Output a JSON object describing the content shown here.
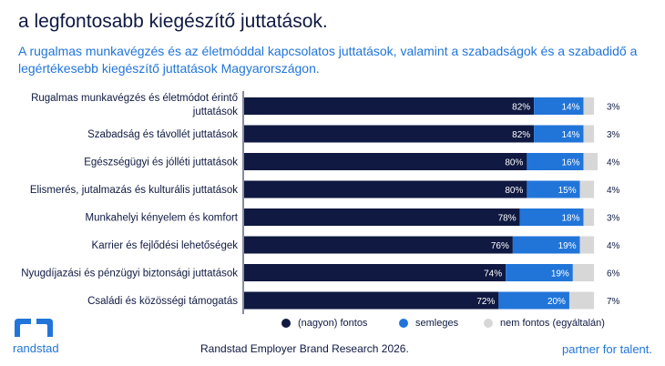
{
  "header": {
    "title": "a legfontosabb kiegészítő juttatások.",
    "subtitle": "A rugalmas munkavégzés és az életmóddal kapcsolatos juttatások, valamint a szabadságok és a szabadidő a legértékesebb kiegészítő juttatások Magyarországon."
  },
  "chart_data": {
    "type": "bar",
    "orientation": "horizontal",
    "stacked": true,
    "categories": [
      [
        "Rugalmas munkavégzés és életmódot érintő",
        "juttatások"
      ],
      [
        "Szabadság és távollét juttatások"
      ],
      [
        "Egészségügyi és jólléti juttatások"
      ],
      [
        "Elismerés, jutalmazás és kulturális juttatások"
      ],
      [
        "Munkahelyi kényelem és komfort"
      ],
      [
        "Karrier és fejlődési lehetőségek"
      ],
      [
        "Nyugdíjazási és pénzügyi biztonsági juttatások"
      ],
      [
        "Családi és közösségi támogatás"
      ]
    ],
    "series": [
      {
        "name": "(nagyon) fontos",
        "color": "#0f1941",
        "values": [
          82,
          82,
          80,
          80,
          78,
          76,
          74,
          72
        ]
      },
      {
        "name": "semleges",
        "color": "#2175d9",
        "values": [
          14,
          14,
          16,
          15,
          18,
          19,
          19,
          20
        ]
      },
      {
        "name": "nem fontos (egyáltalán)",
        "color": "#d7d7d7",
        "values": [
          3,
          3,
          4,
          4,
          3,
          4,
          6,
          7
        ]
      }
    ],
    "value_suffix": "%",
    "xlim": [
      0,
      100
    ],
    "grid": false,
    "legend_position": "bottom"
  },
  "footer": {
    "logo_text": "randstad",
    "source": "Randstad Employer Brand Research 2026.",
    "tagline": "partner for talent."
  }
}
